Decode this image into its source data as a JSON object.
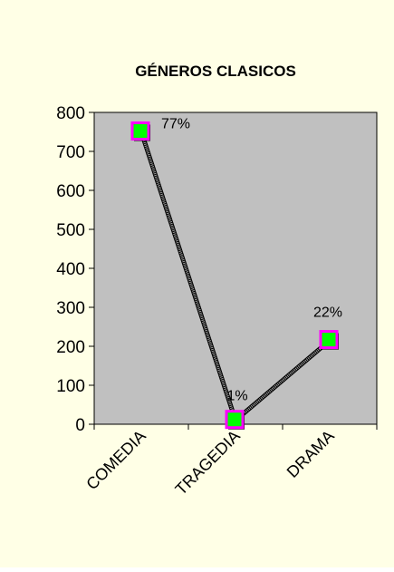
{
  "chart_data": {
    "type": "line",
    "title": "GÉNEROS CLASICOS",
    "xlabel": "",
    "ylabel": "",
    "categories": [
      "COMEDIA",
      "TRAGEDIA",
      "DRAMA"
    ],
    "values": [
      750,
      10,
      215
    ],
    "data_labels": [
      "77%",
      "1%",
      "22%"
    ],
    "ylim": [
      0,
      800
    ],
    "yticks": [
      "0",
      "100",
      "200",
      "300",
      "400",
      "500",
      "600",
      "700",
      "800"
    ],
    "grid": false,
    "legend": "none",
    "colors": {
      "chart_background": "#ffffe6",
      "plot_background": "#c0c0c0",
      "line": "#9c9c9c",
      "marker_fill": "#00ff00",
      "marker_border": "#ff00ff"
    }
  }
}
